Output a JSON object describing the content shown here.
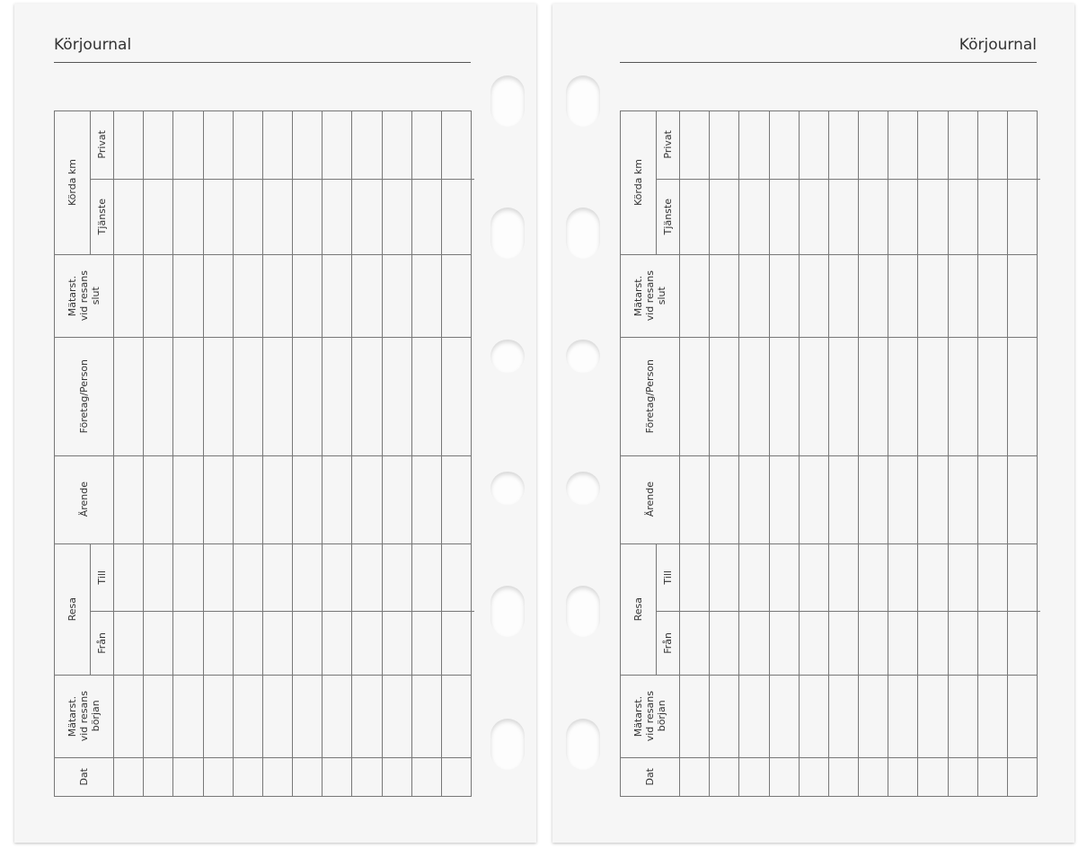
{
  "pages": [
    {
      "title": "Körjournal",
      "side": "left"
    },
    {
      "title": "Körjournal",
      "side": "right"
    }
  ],
  "headers": {
    "korda_km": "Körda km",
    "privat": "Privat",
    "tjanste": "Tjänste",
    "matarst_slut": "Mätarst.\nvid resans\nslut",
    "foretag": "Företag/Person",
    "arende": "Ärende",
    "resa": "Resa",
    "till": "Till",
    "fran": "Från",
    "matarst_borjan": "Mätarst.\nvid resans\nbörjan",
    "dat": "Dat"
  },
  "entry_columns": 12
}
